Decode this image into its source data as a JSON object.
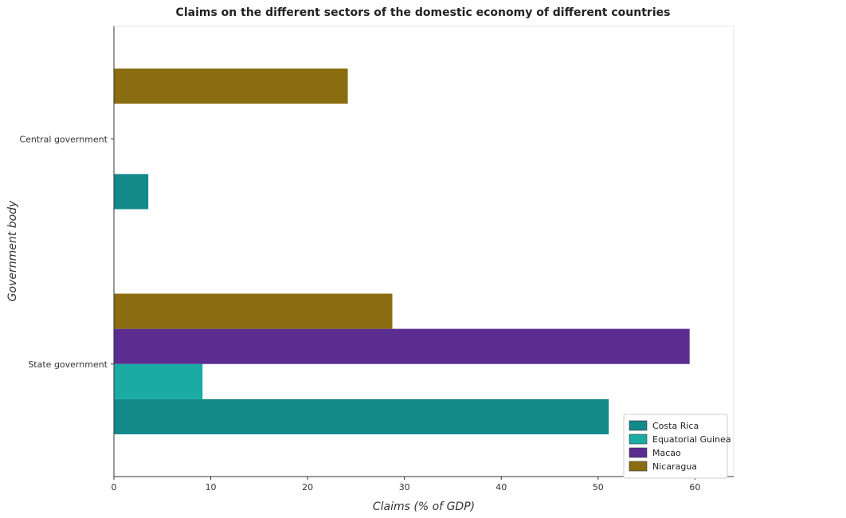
{
  "chart_data": {
    "type": "bar",
    "orientation": "horizontal",
    "title": "Claims on the different sectors of the domestic economy of different countries",
    "xlabel": "Claims (% of GDP)",
    "ylabel": "Government body",
    "categories": [
      "Central government",
      "State government"
    ],
    "xlim": [
      0,
      64
    ],
    "xticks": [
      0,
      10,
      20,
      30,
      40,
      50,
      60
    ],
    "grid": false,
    "legend_position": "bottom-right",
    "series": [
      {
        "name": "Costa Rica",
        "color": "#138a8a",
        "values": [
          3.55,
          51.1
        ]
      },
      {
        "name": "Equatorial Guinea",
        "color": "#1aaba5",
        "values": [
          0,
          9.15
        ]
      },
      {
        "name": "Macao",
        "color": "#5c2d91",
        "values": [
          0,
          59.45
        ]
      },
      {
        "name": "Nicaragua",
        "color": "#8a6d10",
        "values": [
          24.15,
          28.75
        ]
      }
    ]
  }
}
